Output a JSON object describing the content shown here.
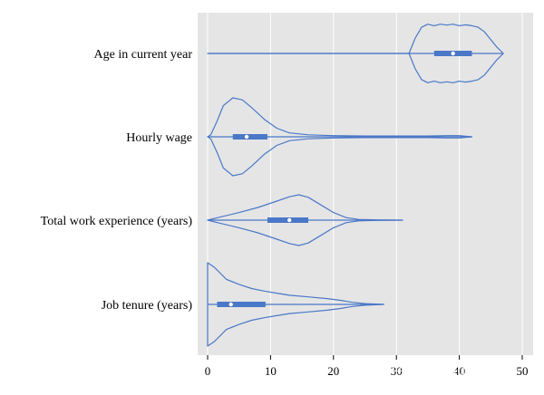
{
  "chart_data": {
    "type": "violin",
    "orientation": "horizontal",
    "xlim": [
      -1,
      51
    ],
    "xticks": [
      0,
      10,
      20,
      30,
      40,
      50
    ],
    "xtick_labels": [
      "0",
      "10",
      "20",
      "30",
      "40",
      "50"
    ],
    "grid": true,
    "colors": {
      "panel": "#e5e5e5",
      "grid": "#ffffff",
      "violin": "#4a78c8",
      "box": "#4a78c8",
      "median": "#ffffff"
    },
    "variables": [
      {
        "label": "Age in current year",
        "min": 0,
        "max": 47,
        "q1": 36,
        "median": 39,
        "q3": 42,
        "whisker_low": 34,
        "whisker_high": 46,
        "density": [
          [
            0,
            0
          ],
          [
            32,
            0
          ],
          [
            33,
            0.5
          ],
          [
            34,
            0.85
          ],
          [
            35,
            0.95
          ],
          [
            36,
            0.9
          ],
          [
            37,
            0.95
          ],
          [
            38,
            0.92
          ],
          [
            39,
            0.95
          ],
          [
            40,
            0.9
          ],
          [
            41,
            0.93
          ],
          [
            42,
            0.9
          ],
          [
            43,
            0.85
          ],
          [
            44,
            0.7
          ],
          [
            45,
            0.45
          ],
          [
            46,
            0.2
          ],
          [
            47,
            0
          ]
        ]
      },
      {
        "label": "Hourly wage",
        "min": 0,
        "max": 42,
        "q1": 4,
        "median": 6.2,
        "q3": 9.5,
        "whisker_low": 0.5,
        "whisker_high": 17,
        "density": [
          [
            0,
            0
          ],
          [
            0.5,
            0.05
          ],
          [
            1.5,
            0.4
          ],
          [
            2.5,
            0.8
          ],
          [
            4,
            1
          ],
          [
            5.5,
            0.95
          ],
          [
            7,
            0.75
          ],
          [
            9,
            0.45
          ],
          [
            11,
            0.22
          ],
          [
            13,
            0.1
          ],
          [
            16,
            0.05
          ],
          [
            20,
            0.03
          ],
          [
            25,
            0.02
          ],
          [
            30,
            0.02
          ],
          [
            35,
            0.02
          ],
          [
            38,
            0.03
          ],
          [
            40,
            0.03
          ],
          [
            42,
            0
          ]
        ]
      },
      {
        "label": "Total work experience (years)",
        "min": 0,
        "max": 31,
        "q1": 9.5,
        "median": 13,
        "q3": 16,
        "whisker_low": 0,
        "whisker_high": 23,
        "density": [
          [
            0,
            0
          ],
          [
            2,
            0.12
          ],
          [
            5,
            0.3
          ],
          [
            8,
            0.5
          ],
          [
            11,
            0.75
          ],
          [
            13,
            0.92
          ],
          [
            14.5,
            1
          ],
          [
            16,
            0.9
          ],
          [
            18,
            0.6
          ],
          [
            20,
            0.3
          ],
          [
            22,
            0.1
          ],
          [
            24,
            0.03
          ],
          [
            27,
            0.01
          ],
          [
            31,
            0
          ]
        ]
      },
      {
        "label": "Job tenure (years)",
        "min": 0,
        "max": 28,
        "q1": 1.5,
        "median": 3.7,
        "q3": 9.2,
        "whisker_low": 0,
        "whisker_high": 17,
        "density": [
          [
            0,
            1
          ],
          [
            1,
            0.9
          ],
          [
            2,
            0.75
          ],
          [
            3,
            0.6
          ],
          [
            5,
            0.48
          ],
          [
            7,
            0.38
          ],
          [
            9,
            0.32
          ],
          [
            11,
            0.27
          ],
          [
            13,
            0.22
          ],
          [
            16,
            0.18
          ],
          [
            19,
            0.14
          ],
          [
            21,
            0.1
          ],
          [
            23,
            0.05
          ],
          [
            25,
            0.02
          ],
          [
            28,
            0
          ]
        ]
      }
    ]
  },
  "watermark": "知乎 @M Figurati"
}
